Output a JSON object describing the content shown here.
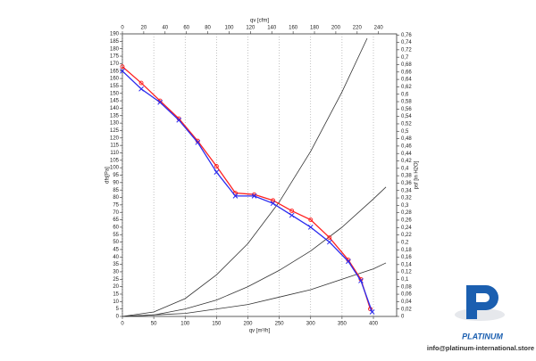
{
  "chart_data": {
    "type": "line",
    "xlabel": "qv [m³/h]",
    "x2label": "qv [cfm]",
    "ylabel": "dfs[Pa]",
    "y2label": "psf [in H2O]",
    "xlim": [
      0,
      437
    ],
    "xticks": [
      0,
      50,
      100,
      150,
      200,
      250,
      300,
      350,
      400
    ],
    "x2lim": [
      0,
      257
    ],
    "x2ticks": [
      0,
      20,
      40,
      60,
      80,
      100,
      120,
      140,
      160,
      180,
      200,
      220,
      240
    ],
    "ylim": [
      0,
      190
    ],
    "yticks": [
      0,
      5,
      10,
      15,
      20,
      25,
      30,
      35,
      40,
      45,
      50,
      55,
      60,
      65,
      70,
      75,
      80,
      85,
      90,
      95,
      100,
      105,
      110,
      115,
      120,
      125,
      130,
      135,
      140,
      145,
      150,
      155,
      160,
      165,
      170,
      175,
      180,
      185,
      190
    ],
    "y2lim": [
      0,
      0.763
    ],
    "y2ticks": [
      0,
      {
        "value": 0.02,
        "label": "0,02"
      },
      {
        "value": 0.04,
        "label": "0,04"
      },
      {
        "value": 0.06,
        "label": "0,06"
      },
      {
        "value": 0.08,
        "label": "0,08"
      },
      {
        "value": 0.1,
        "label": "0,1"
      },
      {
        "value": 0.12,
        "label": "0,12"
      },
      {
        "value": 0.14,
        "label": "0,14"
      },
      {
        "value": 0.16,
        "label": "0,16"
      },
      {
        "value": 0.18,
        "label": "0,18"
      },
      {
        "value": 0.2,
        "label": "0,2"
      },
      {
        "value": 0.22,
        "label": "0,22"
      },
      {
        "value": 0.24,
        "label": "0,24"
      },
      {
        "value": 0.26,
        "label": "0,26"
      },
      {
        "value": 0.28,
        "label": "0,28"
      },
      {
        "value": 0.3,
        "label": "0,3"
      },
      {
        "value": 0.32,
        "label": "0,32"
      },
      {
        "value": 0.34,
        "label": "0,34"
      },
      {
        "value": 0.36,
        "label": "0,36"
      },
      {
        "value": 0.38,
        "label": "0,38"
      },
      {
        "value": 0.4,
        "label": "0,4"
      },
      {
        "value": 0.42,
        "label": "0,42"
      },
      {
        "value": 0.44,
        "label": "0,44"
      },
      {
        "value": 0.46,
        "label": "0,46"
      },
      {
        "value": 0.48,
        "label": "0,48"
      },
      {
        "value": 0.5,
        "label": "0,5"
      },
      {
        "value": 0.52,
        "label": "0,52"
      },
      {
        "value": 0.54,
        "label": "0,54"
      },
      {
        "value": 0.56,
        "label": "0,56"
      },
      {
        "value": 0.58,
        "label": "0,58"
      },
      {
        "value": 0.6,
        "label": "0,6"
      },
      {
        "value": 0.62,
        "label": "0,62"
      },
      {
        "value": 0.64,
        "label": "0,64"
      },
      {
        "value": 0.66,
        "label": "0,66"
      },
      {
        "value": 0.68,
        "label": "0,68"
      },
      {
        "value": 0.7,
        "label": "0,7"
      },
      {
        "value": 0.72,
        "label": "0,72"
      },
      {
        "value": 0.74,
        "label": "0,74"
      },
      {
        "value": 0.76,
        "label": "0,76"
      }
    ],
    "grid": "x",
    "series": [
      {
        "color": "#333333",
        "marker": "none",
        "x": [
          0,
          50,
          100,
          150,
          200,
          250,
          300,
          350,
          390
        ],
        "values": [
          0,
          3,
          12,
          28,
          49,
          77,
          111,
          151,
          187
        ]
      },
      {
        "color": "#333333",
        "marker": "none",
        "x": [
          0,
          50,
          100,
          150,
          200,
          250,
          300,
          350,
          400,
          420
        ],
        "values": [
          0,
          1,
          5,
          11,
          20,
          31,
          44,
          60,
          79,
          87
        ]
      },
      {
        "color": "#333333",
        "marker": "none",
        "x": [
          0,
          50,
          100,
          150,
          200,
          250,
          300,
          350,
          400,
          420
        ],
        "values": [
          0,
          1,
          2,
          5,
          8,
          13,
          18,
          25,
          32,
          36
        ]
      },
      {
        "color": "#ff2020",
        "marker": "circle",
        "x": [
          0,
          30,
          60,
          90,
          120,
          150,
          180,
          210,
          240,
          270,
          300,
          330,
          360,
          380,
          395
        ],
        "values": [
          168,
          157,
          145,
          133,
          118,
          101,
          83,
          82,
          78,
          71,
          65,
          53,
          38,
          25,
          5
        ]
      },
      {
        "color": "#2a2aee",
        "marker": "cross",
        "x": [
          0,
          30,
          60,
          90,
          120,
          150,
          180,
          210,
          240,
          270,
          300,
          330,
          360,
          380,
          398
        ],
        "values": [
          165,
          153,
          144,
          132,
          117,
          97,
          81,
          81,
          76,
          68,
          60,
          50,
          37,
          24,
          3
        ]
      }
    ]
  },
  "logo": {
    "name": "PLATINUM",
    "email": "info@platinum-international.store"
  }
}
